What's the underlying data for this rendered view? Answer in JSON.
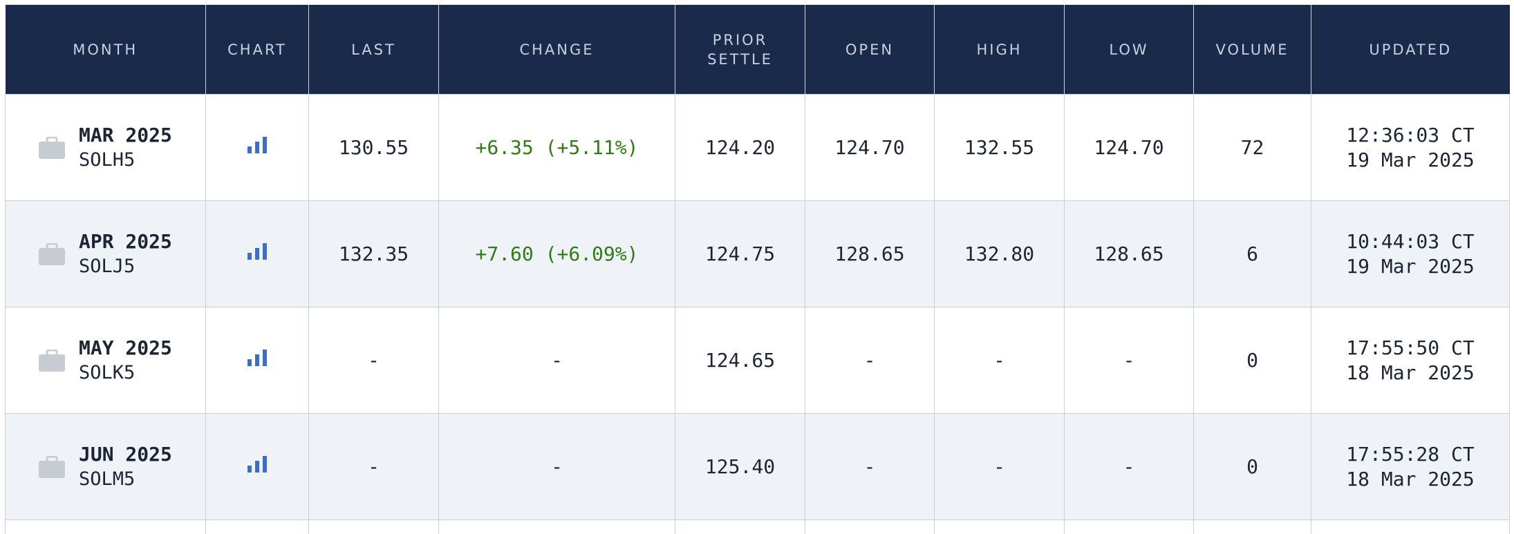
{
  "columns": [
    "MONTH",
    "CHART",
    "LAST",
    "CHANGE",
    "PRIOR SETTLE",
    "OPEN",
    "HIGH",
    "LOW",
    "VOLUME",
    "UPDATED"
  ],
  "colors": {
    "header_bg": "#1a2a4a",
    "positive": "#2e7d14",
    "chart_icon": "#3a6fc2",
    "alt_row": "#eff3f7"
  },
  "rows": [
    {
      "month": "MAR 2025",
      "code": "SOLH5",
      "last": "130.55",
      "change": "+6.35 (+5.11%)",
      "prior_settle": "124.20",
      "open": "124.70",
      "high": "132.55",
      "low": "124.70",
      "volume": "72",
      "time": "12:36:03 CT",
      "date": "19 Mar 2025"
    },
    {
      "month": "APR 2025",
      "code": "SOLJ5",
      "last": "132.35",
      "change": "+7.60 (+6.09%)",
      "prior_settle": "124.75",
      "open": "128.65",
      "high": "132.80",
      "low": "128.65",
      "volume": "6",
      "time": "10:44:03 CT",
      "date": "19 Mar 2025"
    },
    {
      "month": "MAY 2025",
      "code": "SOLK5",
      "last": "-",
      "change": "-",
      "prior_settle": "124.65",
      "open": "-",
      "high": "-",
      "low": "-",
      "volume": "0",
      "time": "17:55:50 CT",
      "date": "18 Mar 2025"
    },
    {
      "month": "JUN 2025",
      "code": "SOLM5",
      "last": "-",
      "change": "-",
      "prior_settle": "125.40",
      "open": "-",
      "high": "-",
      "low": "-",
      "volume": "0",
      "time": "17:55:28 CT",
      "date": "18 Mar 2025"
    }
  ]
}
